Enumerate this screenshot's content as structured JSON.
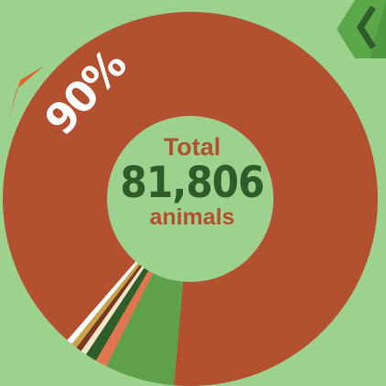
{
  "center": {
    "label": "Total",
    "value": "81,806",
    "unit": "animals"
  },
  "highlight_percent": "90%",
  "colors": {
    "background": "#9dd18e",
    "main_segment": "#b3502f",
    "accent_dark_green": "#2f5d2a",
    "minor_green": "#5fa04a"
  },
  "icons": {
    "nav": "chevron-left-icon",
    "deco": "chevron-left-orange-icon"
  },
  "chart_data": {
    "type": "pie",
    "title": "",
    "segments": [
      {
        "value": 90,
        "color": "#b3502f"
      },
      {
        "value": 6,
        "color": "#5fa04a"
      },
      {
        "value": 1,
        "color": "#e0754f"
      },
      {
        "value": 1,
        "color": "#2f5d2a"
      },
      {
        "value": 0.5,
        "color": "#f2e6c9"
      },
      {
        "value": 0.5,
        "color": "#7a3a22"
      },
      {
        "value": 0.5,
        "color": "#c9a24a"
      },
      {
        "value": 0.5,
        "color": "#ffffff"
      }
    ]
  }
}
